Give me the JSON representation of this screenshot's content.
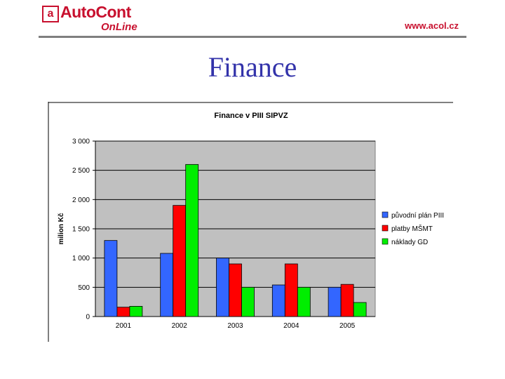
{
  "header": {
    "logo_mark": "a",
    "logo_text": "AutoCont",
    "logo_subtext": "OnLine",
    "url": "www.acol.cz"
  },
  "slide": {
    "title": "Finance"
  },
  "colors": {
    "blue": "#3366ff",
    "red": "#ff0000",
    "green": "#00ee00",
    "plot_bg": "#c0c0c0",
    "title": "#3333aa"
  },
  "chart_data": {
    "type": "bar",
    "title": "Finance v PIII SIPVZ",
    "ylabel": "milion Kč",
    "xlabel": "",
    "ylim": [
      0,
      3000
    ],
    "yticks": [
      0,
      500,
      1000,
      1500,
      2000,
      2500,
      3000
    ],
    "ytick_labels": [
      "0",
      "500",
      "1 000",
      "1 500",
      "2 000",
      "2 500",
      "3 000"
    ],
    "categories": [
      "2001",
      "2002",
      "2003",
      "2004",
      "2005"
    ],
    "grid": true,
    "legend_position": "right",
    "series": [
      {
        "name": "původní plán PIII",
        "color": "#3366ff",
        "values": [
          1300,
          1080,
          1000,
          540,
          500
        ]
      },
      {
        "name": "platby MŠMT",
        "color": "#ff0000",
        "values": [
          160,
          1900,
          900,
          900,
          550
        ]
      },
      {
        "name": "náklady GD",
        "color": "#00ee00",
        "values": [
          175,
          2600,
          500,
          500,
          240
        ]
      }
    ]
  }
}
